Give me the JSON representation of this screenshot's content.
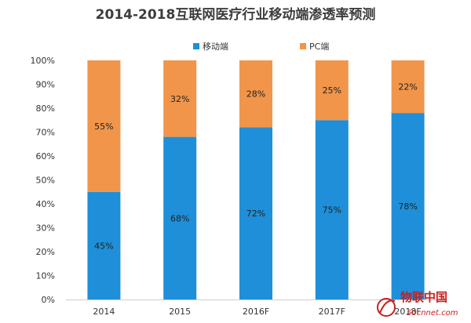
{
  "chart_data": {
    "type": "bar",
    "stacked": true,
    "percent": true,
    "title": "2014-2018互联网医疗行业移动端渗透率预测",
    "categories": [
      "2014",
      "2015",
      "2016F",
      "2017F",
      "2018F"
    ],
    "series": [
      {
        "name": "移动端",
        "color": "#1e8fd8",
        "values": [
          45,
          68,
          72,
          75,
          78
        ],
        "labels": [
          "45%",
          "68%",
          "72%",
          "75%",
          "78%"
        ]
      },
      {
        "name": "PC端",
        "color": "#f0954a",
        "values": [
          55,
          32,
          28,
          25,
          22
        ],
        "labels": [
          "55%",
          "32%",
          "28%",
          "25%",
          "22%"
        ]
      }
    ],
    "yticks": [
      "0%",
      "10%",
      "20%",
      "30%",
      "40%",
      "50%",
      "60%",
      "70%",
      "80%",
      "90%",
      "100%"
    ],
    "ylim": [
      0,
      100
    ],
    "grid": false,
    "legend": "top"
  },
  "watermark": {
    "name": "物联中国",
    "url": "50cnnet.com"
  }
}
